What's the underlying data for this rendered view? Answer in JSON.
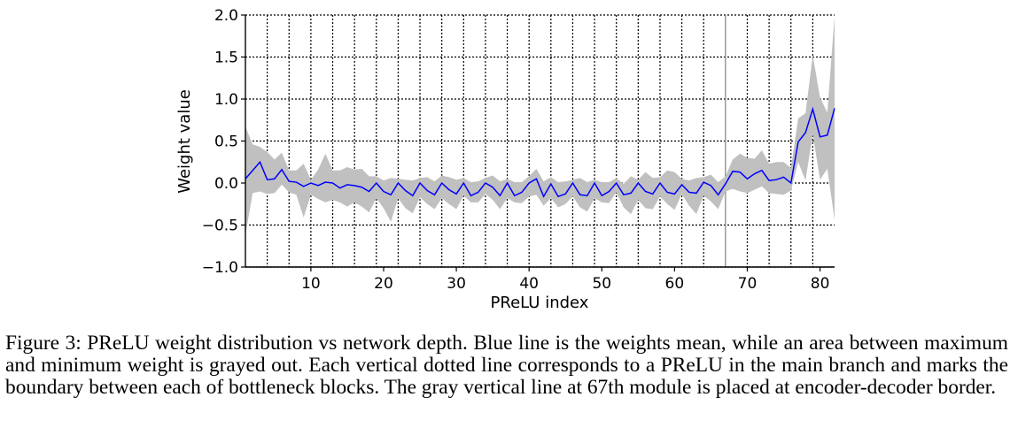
{
  "chart_data": {
    "type": "line",
    "title": "",
    "xlabel": "PReLU index",
    "ylabel": "Weight value",
    "xlim": [
      1,
      82
    ],
    "ylim": [
      -1.0,
      2.0
    ],
    "x_ticks": [
      10,
      20,
      30,
      40,
      50,
      60,
      70,
      80
    ],
    "y_ticks": [
      -1.0,
      -0.5,
      0.0,
      0.5,
      1.0,
      1.5,
      2.0
    ],
    "y_tick_labels": [
      "−1.0",
      "−0.5",
      "0.0",
      "0.5",
      "1.0",
      "1.5",
      "2.0"
    ],
    "grid": {
      "horizontal": "dotted",
      "vertical_dotted_at": [
        4,
        7,
        10,
        13,
        16,
        19,
        22,
        25,
        28,
        31,
        34,
        37,
        40,
        43,
        46,
        49,
        52,
        55,
        58,
        61,
        64,
        70,
        73,
        76,
        79
      ]
    },
    "encoder_decoder_border": 67,
    "legend": null,
    "colors": {
      "mean_line": "#0000ff",
      "range_fill": "#c0c0c0",
      "border_line": "#808080"
    },
    "x": [
      1,
      2,
      3,
      4,
      5,
      6,
      7,
      8,
      9,
      10,
      11,
      12,
      13,
      14,
      15,
      16,
      17,
      18,
      19,
      20,
      21,
      22,
      23,
      24,
      25,
      26,
      27,
      28,
      29,
      30,
      31,
      32,
      33,
      34,
      35,
      36,
      37,
      38,
      39,
      40,
      41,
      42,
      43,
      44,
      45,
      46,
      47,
      48,
      49,
      50,
      51,
      52,
      53,
      54,
      55,
      56,
      57,
      58,
      59,
      60,
      61,
      62,
      63,
      64,
      65,
      66,
      67,
      68,
      69,
      70,
      71,
      72,
      73,
      74,
      75,
      76,
      77,
      78,
      79,
      80,
      81,
      82
    ],
    "series": [
      {
        "name": "mean",
        "values": [
          0.05,
          0.15,
          0.25,
          0.04,
          0.05,
          0.16,
          0.02,
          0.01,
          -0.04,
          0.0,
          -0.03,
          0.01,
          0.0,
          -0.06,
          -0.02,
          -0.03,
          -0.05,
          -0.1,
          0.0,
          -0.1,
          -0.14,
          0.0,
          -0.09,
          -0.15,
          0.0,
          -0.09,
          -0.14,
          0.0,
          -0.08,
          -0.13,
          0.0,
          -0.15,
          -0.11,
          0.0,
          -0.05,
          -0.15,
          0.0,
          -0.15,
          -0.11,
          0.0,
          0.05,
          -0.16,
          -0.01,
          -0.16,
          -0.13,
          0.0,
          -0.14,
          -0.15,
          0.0,
          -0.15,
          -0.1,
          0.0,
          -0.14,
          -0.12,
          0.0,
          -0.1,
          -0.13,
          0.0,
          -0.11,
          -0.13,
          -0.02,
          -0.11,
          -0.12,
          0.01,
          -0.03,
          -0.14,
          -0.01,
          0.14,
          0.13,
          0.05,
          0.11,
          0.15,
          0.03,
          0.04,
          0.07,
          0.0,
          0.49,
          0.6,
          0.88,
          0.55,
          0.57,
          0.89
        ]
      },
      {
        "name": "max",
        "values": [
          0.67,
          0.46,
          0.43,
          0.37,
          0.28,
          0.36,
          0.15,
          0.15,
          0.23,
          0.04,
          0.16,
          0.35,
          0.15,
          0.15,
          0.19,
          0.16,
          0.17,
          0.08,
          0.08,
          0.03,
          0.06,
          0.05,
          0.04,
          0.03,
          0.06,
          0.07,
          0.02,
          0.09,
          0.07,
          0.04,
          0.06,
          0.01,
          0.02,
          0.06,
          0.09,
          0.02,
          0.05,
          0.01,
          0.01,
          0.08,
          0.17,
          0.02,
          0.07,
          0.01,
          0.02,
          0.04,
          0.06,
          0.01,
          0.04,
          0.01,
          0.01,
          0.06,
          -0.01,
          0.08,
          0.04,
          0.13,
          0.06,
          0.07,
          0.15,
          0.13,
          0.05,
          0.03,
          0.06,
          0.07,
          0.1,
          0.01,
          0.08,
          0.28,
          0.35,
          0.3,
          0.29,
          0.39,
          0.23,
          0.25,
          0.25,
          0.18,
          0.77,
          0.83,
          1.52,
          1.02,
          0.84,
          1.99
        ]
      },
      {
        "name": "min",
        "values": [
          -0.62,
          -0.12,
          -0.1,
          -0.13,
          -0.12,
          -0.02,
          -0.11,
          -0.14,
          -0.41,
          -0.14,
          -0.19,
          -0.23,
          -0.2,
          -0.23,
          -0.28,
          -0.23,
          -0.28,
          -0.35,
          -0.18,
          -0.3,
          -0.46,
          -0.18,
          -0.3,
          -0.36,
          -0.17,
          -0.25,
          -0.31,
          -0.18,
          -0.25,
          -0.31,
          -0.15,
          -0.23,
          -0.23,
          -0.13,
          -0.2,
          -0.31,
          -0.18,
          -0.23,
          -0.24,
          -0.16,
          -0.14,
          -0.27,
          -0.18,
          -0.29,
          -0.25,
          -0.16,
          -0.29,
          -0.34,
          -0.18,
          -0.23,
          -0.24,
          -0.11,
          -0.29,
          -0.37,
          -0.2,
          -0.3,
          -0.31,
          -0.16,
          -0.25,
          -0.32,
          -0.13,
          -0.27,
          -0.37,
          -0.15,
          -0.22,
          -0.31,
          -0.1,
          -0.07,
          -0.1,
          -0.12,
          -0.08,
          -0.04,
          -0.12,
          -0.13,
          -0.14,
          -0.09,
          0.25,
          0.03,
          0.58,
          0.04,
          0.17,
          -0.44
        ]
      }
    ]
  },
  "caption": "Figure 3: PReLU weight distribution vs network depth. Blue line is the weights mean, while an area between maximum and minimum weight is grayed out. Each vertical dotted line corresponds to a PReLU in the main branch and marks the boundary between each of bottleneck blocks. The gray vertical line at 67th module is placed at encoder-decoder border."
}
